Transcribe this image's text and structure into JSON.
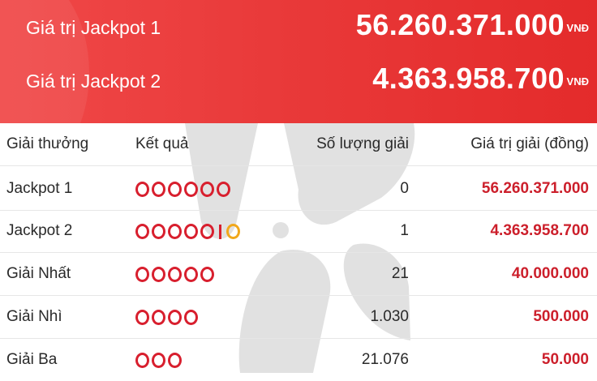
{
  "jackpots": [
    {
      "label": "Giá trị Jackpot 1",
      "value": "56.260.371.000",
      "currency": "VNĐ"
    },
    {
      "label": "Giá trị Jackpot 2",
      "value": "4.363.958.700",
      "currency": "VNĐ"
    }
  ],
  "table": {
    "headers": {
      "prize_name": "Giải thưởng",
      "result": "Kết quả",
      "count": "Số lượng giải",
      "value": "Giá trị giải (đồng)"
    },
    "rows": [
      {
        "name": "Jackpot 1",
        "count": "0",
        "value": "56.260.371.000",
        "balls": 6,
        "special_balls": 0
      },
      {
        "name": "Jackpot 2",
        "count": "1",
        "value": "4.363.958.700",
        "balls": 5,
        "special_balls": 1
      },
      {
        "name": "Giải Nhất",
        "count": "21",
        "value": "40.000.000",
        "balls": 5,
        "special_balls": 0
      },
      {
        "name": "Giải Nhì",
        "count": "1.030",
        "value": "500.000",
        "balls": 4,
        "special_balls": 0
      },
      {
        "name": "Giải Ba",
        "count": "21.076",
        "value": "50.000",
        "balls": 3,
        "special_balls": 0
      }
    ]
  },
  "colors": {
    "header_bg": "#e93a3a",
    "ball": "#d81f2e",
    "special_ball": "#f1a81c",
    "prize_text": "#cc1f2b"
  }
}
